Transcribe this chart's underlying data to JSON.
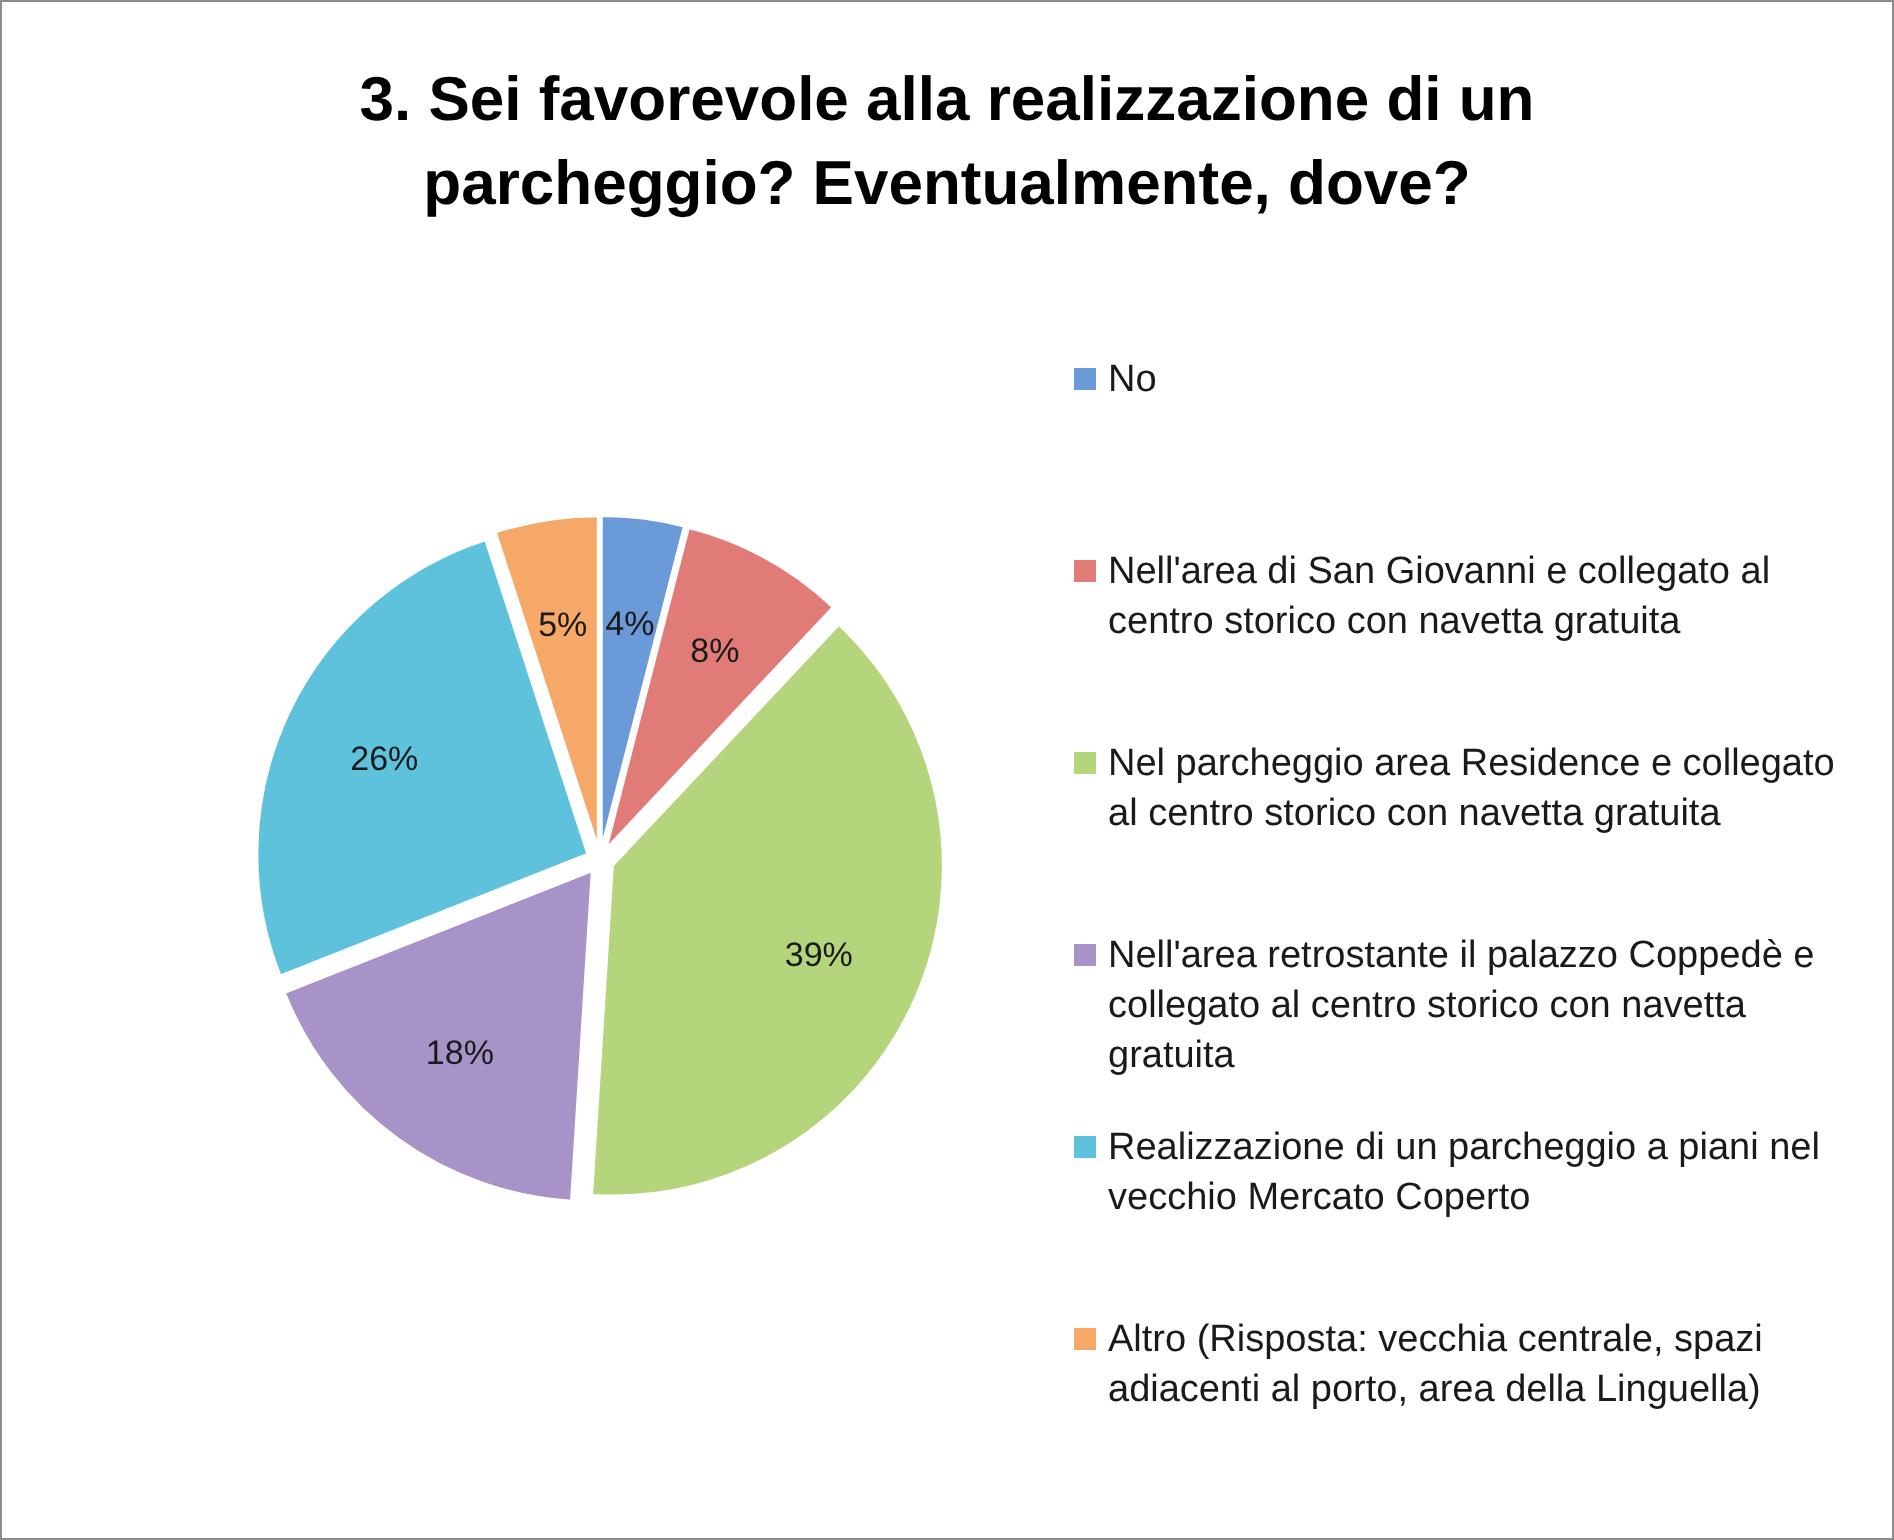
{
  "chart_data": {
    "type": "pie",
    "title": "3. Sei favorevole alla realizzazione di un parcheggio? Eventualmente, dove?",
    "categories": [
      "No",
      "Nell'area di San Giovanni e collegato al centro storico con navetta gratuita",
      "Nel parcheggio area Residence e collegato al centro storico con navetta gratuita",
      "Nell'area retrostante il palazzo Coppedè e collegato al centro storico con navetta gratuita",
      "Realizzazione di un parcheggio a piani nel vecchio Mercato Coperto",
      "Altro (Risposta: vecchia centrale, spazi adiacenti al porto, area della Linguella)"
    ],
    "values": [
      4,
      8,
      39,
      18,
      26,
      5
    ],
    "colors": [
      "#6a9bd8",
      "#e07b78",
      "#b5d57c",
      "#a793c8",
      "#5ec2dc",
      "#f6a868"
    ],
    "value_labels": [
      "4%",
      "8%",
      "39%",
      "18%",
      "26%",
      "5%"
    ],
    "legend": "right"
  }
}
